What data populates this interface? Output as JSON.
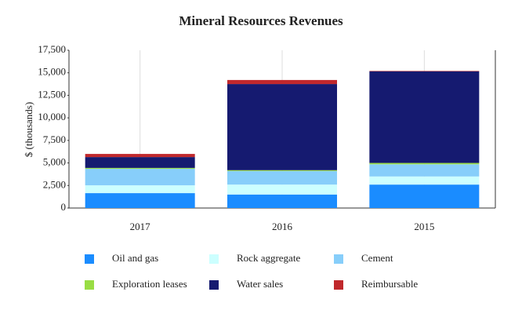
{
  "chart_data": {
    "type": "stacked_bar",
    "title": "Mineral Resources Revenues",
    "y_label": "$ (thousands)",
    "categories": [
      "2017",
      "2016",
      "2015"
    ],
    "series": [
      {
        "name": "Oil and gas",
        "color": "#1a8cff",
        "values": [
          1650,
          1500,
          2600
        ]
      },
      {
        "name": "Rock aggregate",
        "color": "#ccffff",
        "values": [
          870,
          1100,
          900
        ]
      },
      {
        "name": "Cement",
        "color": "#87cefa",
        "values": [
          1830,
          1500,
          1350
        ]
      },
      {
        "name": "Exploration leases",
        "color": "#99dd44",
        "values": [
          100,
          100,
          150
        ]
      },
      {
        "name": "Water sales",
        "color": "#151a70",
        "values": [
          1200,
          9550,
          10150
        ]
      },
      {
        "name": "Reimbursable",
        "color": "#c0282c",
        "values": [
          350,
          450,
          50
        ]
      }
    ],
    "ylim": [
      0,
      17500
    ],
    "yticks": [
      0,
      {
        "value": 2500,
        "label": "2,500"
      },
      {
        "value": 5000,
        "label": "5,000"
      },
      {
        "value": 7500,
        "label": "7,500"
      },
      {
        "value": 10000,
        "label": "10,000"
      },
      {
        "value": 12500,
        "label": "12,500"
      },
      {
        "value": 15000,
        "label": "15,000"
      },
      {
        "value": 17500,
        "label": "17,500"
      }
    ],
    "grid": true
  }
}
